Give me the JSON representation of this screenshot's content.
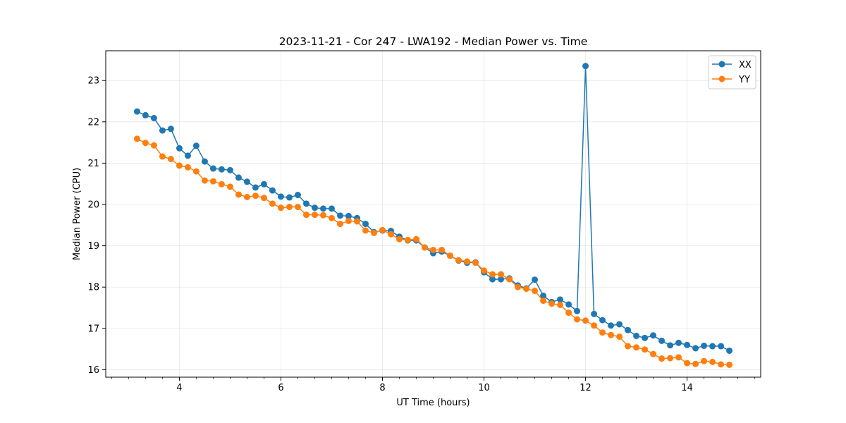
{
  "chart_data": {
    "type": "line",
    "title": "2023-11-21 - Cor 247 - LWA192 - Median Power vs. Time",
    "xlabel": "UT Time (hours)",
    "ylabel": "Median Power (CPU)",
    "xlim": [
      2.55,
      15.45
    ],
    "ylim": [
      15.82,
      23.72
    ],
    "xticks": [
      4,
      6,
      8,
      10,
      12,
      14
    ],
    "xtick_labels": [
      "4",
      "6",
      "8",
      "10",
      "12",
      "14"
    ],
    "minor_xticks": [
      2.667,
      3.0,
      3.333,
      3.667,
      4.333,
      4.667,
      5.0,
      5.333,
      5.667,
      6.333,
      6.667,
      7.0,
      7.333,
      7.667,
      8.333,
      8.667,
      9.0,
      9.333,
      9.667,
      10.333,
      10.667,
      11.0,
      11.333,
      11.667,
      12.333,
      12.667,
      13.0,
      13.333,
      13.667,
      14.333,
      14.667,
      15.0,
      15.333
    ],
    "yticks": [
      16,
      17,
      18,
      19,
      20,
      21,
      22,
      23
    ],
    "ytick_labels": [
      "16",
      "17",
      "18",
      "19",
      "20",
      "21",
      "22",
      "23"
    ],
    "grid": true,
    "legend_position": "top-right",
    "x": [
      3.167,
      3.333,
      3.5,
      3.667,
      3.833,
      4.0,
      4.167,
      4.333,
      4.5,
      4.667,
      4.833,
      5.0,
      5.167,
      5.333,
      5.5,
      5.667,
      5.833,
      6.0,
      6.167,
      6.333,
      6.5,
      6.667,
      6.833,
      7.0,
      7.167,
      7.333,
      7.5,
      7.667,
      7.833,
      8.0,
      8.167,
      8.333,
      8.5,
      8.667,
      8.833,
      9.0,
      9.167,
      9.333,
      9.5,
      9.667,
      9.833,
      10.0,
      10.167,
      10.333,
      10.5,
      10.667,
      10.833,
      11.0,
      11.167,
      11.333,
      11.5,
      11.667,
      11.833,
      12.0,
      12.167,
      12.333,
      12.5,
      12.667,
      12.833,
      13.0,
      13.167,
      13.333,
      13.5,
      13.667,
      13.833,
      14.0,
      14.167,
      14.333,
      14.5,
      14.667,
      14.833
    ],
    "series": [
      {
        "name": "XX",
        "color": "#1f77b4",
        "values": [
          22.25,
          22.16,
          22.09,
          21.79,
          21.83,
          21.36,
          21.18,
          21.42,
          21.04,
          20.87,
          20.85,
          20.83,
          20.65,
          20.55,
          20.41,
          20.49,
          20.34,
          20.19,
          20.17,
          20.23,
          20.02,
          19.92,
          19.9,
          19.9,
          19.73,
          19.72,
          19.67,
          19.53,
          19.33,
          19.37,
          19.36,
          19.22,
          19.13,
          19.13,
          18.96,
          18.82,
          18.86,
          18.76,
          18.64,
          18.59,
          18.6,
          18.36,
          18.19,
          18.19,
          18.21,
          18.04,
          17.97,
          18.18,
          17.79,
          17.64,
          17.7,
          17.58,
          17.42,
          23.35,
          17.35,
          17.2,
          17.07,
          17.1,
          16.96,
          16.82,
          16.77,
          16.83,
          16.7,
          16.59,
          16.65,
          16.6,
          16.52,
          16.58,
          16.57,
          16.57,
          16.46
        ]
      },
      {
        "name": "YY",
        "color": "#ff7f0e",
        "values": [
          21.59,
          21.49,
          21.43,
          21.16,
          21.1,
          20.94,
          20.9,
          20.8,
          20.58,
          20.56,
          20.49,
          20.43,
          20.24,
          20.18,
          20.21,
          20.16,
          20.02,
          19.92,
          19.94,
          19.94,
          19.75,
          19.75,
          19.74,
          19.67,
          19.53,
          19.6,
          19.59,
          19.37,
          19.31,
          19.38,
          19.28,
          19.16,
          19.14,
          19.16,
          18.96,
          18.9,
          18.9,
          18.76,
          18.65,
          18.62,
          18.59,
          18.4,
          18.31,
          18.31,
          18.19,
          18.0,
          17.96,
          17.91,
          17.67,
          17.6,
          17.57,
          17.38,
          17.22,
          17.19,
          17.07,
          16.9,
          16.84,
          16.8,
          16.57,
          16.54,
          16.49,
          16.38,
          16.27,
          16.28,
          16.3,
          16.16,
          16.14,
          16.21,
          16.19,
          16.13,
          16.12
        ]
      }
    ]
  }
}
